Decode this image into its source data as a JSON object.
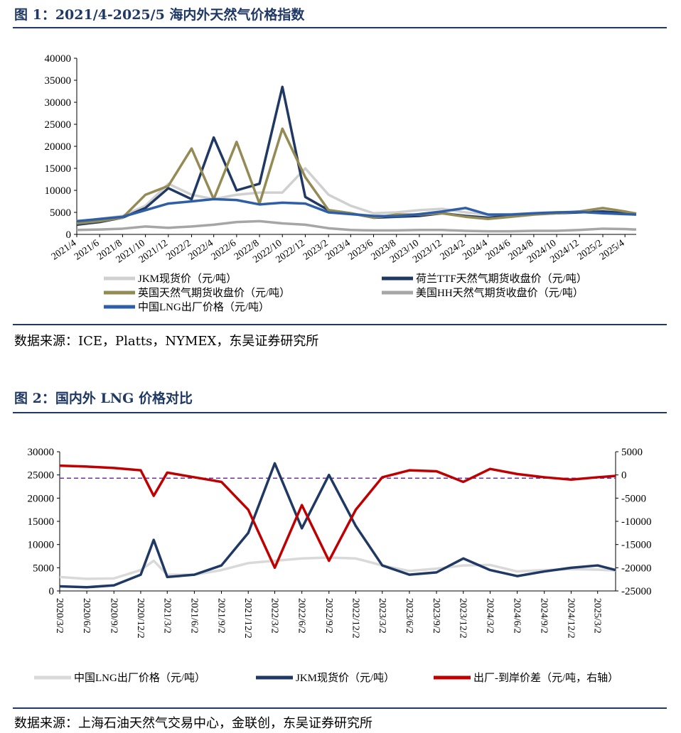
{
  "fig1": {
    "title": "图 1：2021/4-2025/5 海内外天然气价格指数",
    "source": "数据来源：ICE，Platts，NYMEX，东吴证券研究所",
    "chart_data": {
      "type": "line",
      "ylim": [
        0,
        40000
      ],
      "yticks": [
        "0",
        "5000",
        "10000",
        "15000",
        "20000",
        "25000",
        "30000",
        "35000",
        "40000"
      ],
      "xticks": [
        "2021/4",
        "2021/6",
        "2021/8",
        "2021/10",
        "2021/12",
        "2022/2",
        "2022/4",
        "2022/6",
        "2022/8",
        "2022/10",
        "2022/12",
        "2023/2",
        "2023/4",
        "2023/6",
        "2023/8",
        "2023/10",
        "2023/12",
        "2024/2",
        "2024/4",
        "2024/6",
        "2024/8",
        "2024/10",
        "2024/12",
        "2025/2",
        "2025/4"
      ],
      "x": [
        "2021/4",
        "2021/6",
        "2021/8",
        "2021/10",
        "2021/12",
        "2022/2",
        "2022/4",
        "2022/6",
        "2022/8",
        "2022/10",
        "2022/12",
        "2023/2",
        "2023/4",
        "2023/6",
        "2023/8",
        "2023/10",
        "2023/12",
        "2024/2",
        "2024/4",
        "2024/6",
        "2024/8",
        "2024/10",
        "2024/12",
        "2025/2",
        "2025/4",
        "2025/5"
      ],
      "series": [
        {
          "name": "JKM现货价（元/吨）",
          "color": "#d0d0d0",
          "values": [
            3000,
            3500,
            4200,
            6500,
            11500,
            9000,
            8000,
            9000,
            9500,
            9500,
            15000,
            9000,
            6500,
            4800,
            5000,
            5500,
            5800,
            5000,
            4500,
            4600,
            4800,
            5000,
            5200,
            5500,
            5100,
            4800
          ]
        },
        {
          "name": "荷兰TTF天然气期货收盘价（元/吨）",
          "color": "#1f3864",
          "values": [
            2200,
            2800,
            3800,
            6000,
            10500,
            8000,
            22000,
            10000,
            11500,
            33500,
            8500,
            5500,
            4800,
            3800,
            4000,
            4200,
            4800,
            4200,
            3800,
            4200,
            4600,
            4800,
            5000,
            5200,
            4800,
            4700
          ]
        },
        {
          "name": "英国天然气期货收盘价（元/吨）",
          "color": "#948a54",
          "values": [
            2500,
            3000,
            3800,
            9000,
            11000,
            19500,
            8000,
            21000,
            7000,
            24000,
            13000,
            5500,
            4800,
            3800,
            4500,
            4500,
            4800,
            4000,
            3500,
            4000,
            4500,
            4800,
            5200,
            6000,
            5200,
            4700
          ]
        },
        {
          "name": "美国HH天然气期货收盘价（元/吨）",
          "color": "#a6a6a6",
          "values": [
            1000,
            1100,
            1300,
            1800,
            1500,
            1800,
            2200,
            2800,
            3000,
            2500,
            2200,
            1400,
            1000,
            900,
            900,
            1000,
            1000,
            800,
            700,
            700,
            800,
            800,
            1000,
            1300,
            1200,
            1100
          ]
        },
        {
          "name": "中国LNG出厂价格（元/吨）",
          "color": "#2e5fa6",
          "values": [
            3000,
            3500,
            4000,
            5500,
            7000,
            7500,
            8000,
            7800,
            6800,
            7200,
            7000,
            5000,
            4600,
            4200,
            4100,
            4600,
            5200,
            6000,
            4500,
            4500,
            4800,
            5000,
            5100,
            4800,
            4600,
            4500
          ]
        }
      ]
    }
  },
  "fig2": {
    "title": "图 2：国内外 LNG 价格对比",
    "source": "数据来源：上海石油天然气交易中心，金联创，东吴证券研究所",
    "chart_data": {
      "type": "line",
      "ylim": [
        0,
        30000
      ],
      "y2lim": [
        -25000,
        5000
      ],
      "yticks": [
        "0",
        "5000",
        "10000",
        "15000",
        "20000",
        "25000",
        "30000"
      ],
      "y2ticks": [
        "-25000",
        "-20000",
        "-15000",
        "-10000",
        "-5000",
        "0",
        "5000"
      ],
      "xticks": [
        "2020/3/2",
        "2020/6/2",
        "2020/9/2",
        "2020/12/2",
        "2021/3/2",
        "2021/6/2",
        "2021/9/2",
        "2021/12/2",
        "2022/3/2",
        "2022/6/2",
        "2022/9/2",
        "2022/12/2",
        "2023/3/2",
        "2023/6/2",
        "2023/9/2",
        "2023/12/2",
        "2024/3/2",
        "2024/6/2",
        "2024/9/2",
        "2024/12/2",
        "2025/3/2"
      ],
      "x": [
        "2020/3/2",
        "2020/6/2",
        "2020/9/2",
        "2020/12/2",
        "2021/1/15",
        "2021/3/2",
        "2021/6/2",
        "2021/9/2",
        "2021/12/2",
        "2022/3/2",
        "2022/6/2",
        "2022/9/2",
        "2022/12/2",
        "2023/3/2",
        "2023/6/2",
        "2023/9/2",
        "2023/12/2",
        "2024/3/2",
        "2024/6/2",
        "2024/9/2",
        "2024/12/2",
        "2025/3/2",
        "2025/5/2"
      ],
      "series": [
        {
          "name": "中国LNG出厂价格（元/吨）",
          "color": "#d9d9d9",
          "axis": "left",
          "values": [
            3000,
            2600,
            2700,
            4500,
            6500,
            3500,
            3500,
            4500,
            6000,
            6500,
            7000,
            7200,
            7000,
            5500,
            4300,
            4800,
            5500,
            5600,
            4200,
            4500,
            4700,
            4600,
            4400
          ]
        },
        {
          "name": "JKM现货价（元/吨）",
          "color": "#1f3864",
          "axis": "left",
          "values": [
            1000,
            800,
            1200,
            3500,
            11000,
            3000,
            3500,
            5500,
            12500,
            27500,
            13500,
            25000,
            14000,
            5500,
            3500,
            4000,
            7000,
            4500,
            3200,
            4200,
            5000,
            5500,
            4500
          ]
        },
        {
          "name": "出厂-到岸价差（元/吨，右轴）",
          "color": "#c00000",
          "axis": "right",
          "values": [
            2000,
            1800,
            1500,
            1000,
            -4500,
            500,
            -500,
            -1500,
            -7500,
            -20000,
            -6500,
            -18500,
            -7500,
            -500,
            1000,
            800,
            -1500,
            1300,
            200,
            -500,
            -1000,
            -500,
            -200
          ]
        }
      ],
      "reference_line": {
        "axis": "right",
        "value": -700,
        "color": "#7030a0"
      }
    }
  }
}
